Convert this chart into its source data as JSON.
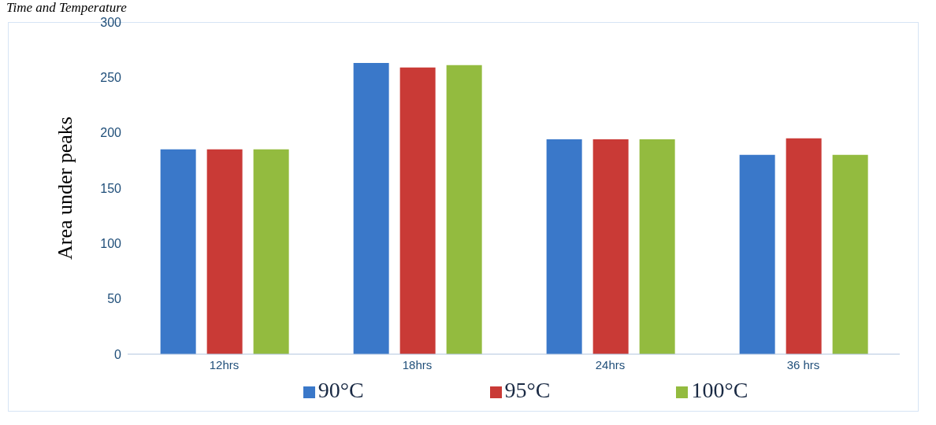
{
  "chart_data": {
    "type": "bar",
    "title": "Time and Temperature",
    "ylabel": "Area under peaks",
    "categories": [
      "12hrs",
      "18hrs",
      "24hrs",
      "36 hrs"
    ],
    "series": [
      {
        "name": "90°C",
        "color": "#3a78c9",
        "values": [
          185,
          263,
          194,
          180
        ]
      },
      {
        "name": "95°C",
        "color": "#c93a36",
        "values": [
          185,
          259,
          194,
          195
        ]
      },
      {
        "name": "100°C",
        "color": "#93bb3f",
        "values": [
          185,
          261,
          194,
          180
        ]
      }
    ],
    "ylim": [
      0,
      300
    ],
    "yticks": [
      0,
      50,
      100,
      150,
      200,
      250,
      300
    ],
    "grid": false,
    "legend": "bottom"
  }
}
